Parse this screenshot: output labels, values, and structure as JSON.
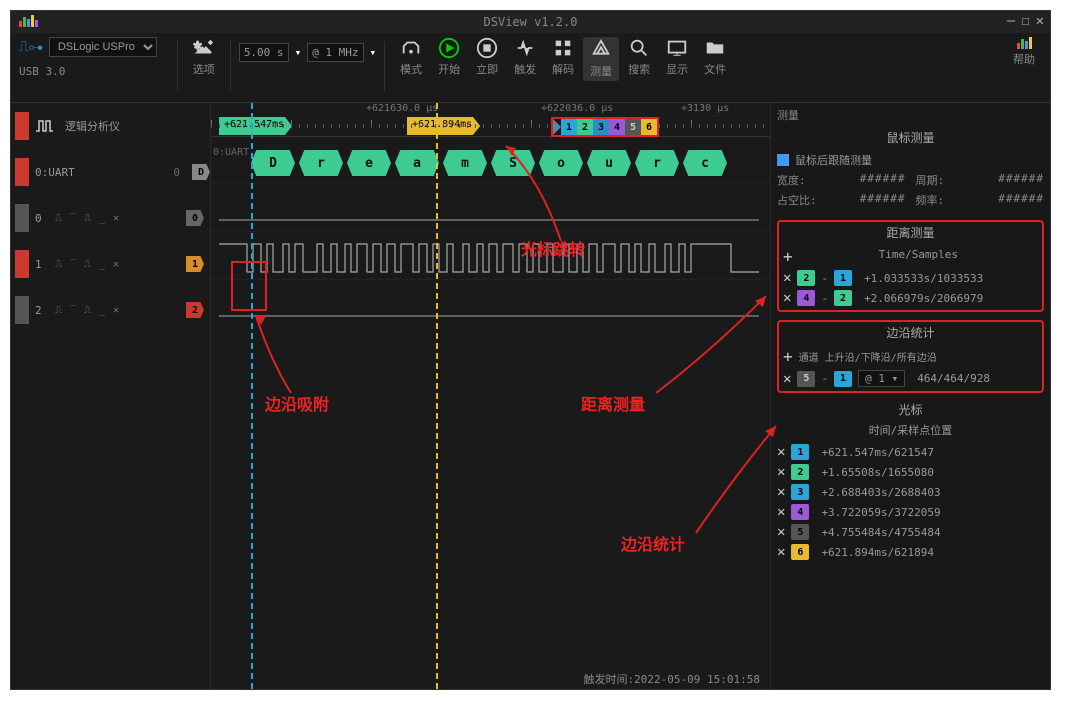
{
  "window_title": "DSView v1.2.0",
  "device": {
    "name": "DSLogic USPro",
    "usb": "USB 3.0"
  },
  "sample": {
    "duration": "5.00 s",
    "rate": "@ 1 MHz"
  },
  "toolbar_labels": {
    "options": "选项",
    "mode": "模式",
    "start": "开始",
    "instant": "立即",
    "trigger": "触发",
    "decode": "解码",
    "measure": "测量",
    "search": "搜索",
    "display": "显示",
    "file": "文件",
    "help": "帮助"
  },
  "ruler_labels": {
    "t1": "+621.547ms",
    "t2": "+621.894ms",
    "r1": "+621630.0 μs",
    "r2": "+622036.0 μs",
    "r3": "+3130 μs"
  },
  "sidebar": {
    "logic": "逻辑分析仪",
    "uart": "0:UART",
    "ch": [
      "0",
      "1",
      "2"
    ]
  },
  "decode": {
    "label": "0:UART",
    "chars": [
      "D",
      "r",
      "e",
      "a",
      "m",
      "S",
      "o",
      "u",
      "r",
      "c"
    ]
  },
  "cursor_bar_nums": [
    "1",
    "2",
    "3",
    "4",
    "5",
    "6"
  ],
  "rightpanel": {
    "top_tag": "测量",
    "mouse": {
      "title": "鼠标测量",
      "follow": "鼠标后跟随测量",
      "width_l": "宽度:",
      "width_v": "######",
      "period_l": "周期:",
      "period_v": "######",
      "duty_l": "占空比:",
      "duty_v": "######",
      "freq_l": "频率:",
      "freq_v": "######"
    },
    "distance": {
      "title": "距离测量",
      "sub": "Time/Samples",
      "rows": [
        {
          "a": "2",
          "ac": "#3dcb91",
          "b": "1",
          "bc": "#2aa5d8",
          "val": "+1.033533s/1033533"
        },
        {
          "a": "4",
          "ac": "#9b59d6",
          "b": "2",
          "bc": "#3dcb91",
          "val": "+2.066979s/2066979"
        }
      ]
    },
    "edges": {
      "title": "边沿统计",
      "header": "通道  上升沿/下降沿/所有边沿",
      "rows": [
        {
          "a": "5",
          "ac": "#555",
          "b": "1",
          "bc": "#2aa5d8",
          "sel": "@ 1",
          "val": "464/464/928"
        }
      ]
    },
    "cursors": {
      "title": "光标",
      "sub": "时间/采样点位置",
      "rows": [
        {
          "n": "1",
          "c": "#2aa5d8",
          "val": "+621.547ms/621547"
        },
        {
          "n": "2",
          "c": "#3dcb91",
          "val": "+1.65508s/1655080"
        },
        {
          "n": "3",
          "c": "#2aa5d8",
          "val": "+2.688403s/2688403"
        },
        {
          "n": "4",
          "c": "#9b59d6",
          "val": "+3.722059s/3722059"
        },
        {
          "n": "5",
          "c": "#555",
          "val": "+4.755484s/4755484"
        },
        {
          "n": "6",
          "c": "#e8bb2f",
          "val": "+621.894ms/621894"
        }
      ]
    }
  },
  "annotations": {
    "cursor_jump": "光标跳转",
    "edge_snap": "边沿吸附",
    "distance": "距离测量",
    "edge_stat": "边沿统计"
  },
  "statusbar": "触发时间:2022-05-09 15:01:58",
  "colors": {
    "c1": "#2aa5d8",
    "c2": "#3dcb91",
    "c3": "#2a8fc9",
    "c4": "#9b59d6",
    "c5": "#555",
    "c6": "#e8bb2f",
    "flag_orange": "#d98a2b",
    "flag_red": "#cc3a2f"
  }
}
